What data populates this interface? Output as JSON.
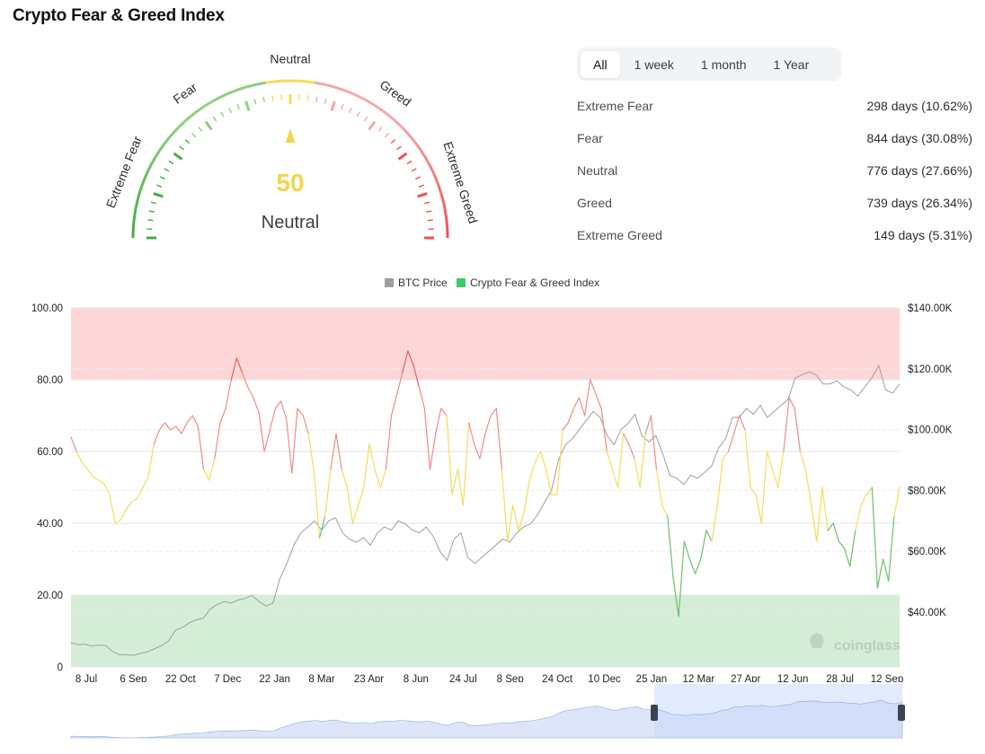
{
  "title": "Crypto Fear & Greed Index",
  "gauge": {
    "value": 50,
    "value_text": "50",
    "classification": "Neutral",
    "zone_labels": [
      "Extreme Fear",
      "Fear",
      "Neutral",
      "Greed",
      "Extreme Greed"
    ],
    "colors": {
      "extreme_fear": "#3fae3f",
      "fear": "#8fd07e",
      "neutral": "#f5dc5a",
      "greed": "#f5a8a8",
      "extreme_greed": "#ee4f55",
      "value": "#f3d54e"
    }
  },
  "tabs": [
    {
      "label": "All",
      "active": true
    },
    {
      "label": "1 week",
      "active": false
    },
    {
      "label": "1 month",
      "active": false
    },
    {
      "label": "1 Year",
      "active": false
    }
  ],
  "stats": [
    {
      "label": "Extreme Fear",
      "value": "298 days (10.62%)"
    },
    {
      "label": "Fear",
      "value": "844 days (30.08%)"
    },
    {
      "label": "Neutral",
      "value": "776 days (27.66%)"
    },
    {
      "label": "Greed",
      "value": "739 days (26.34%)"
    },
    {
      "label": "Extreme Greed",
      "value": "149 days (5.31%)"
    }
  ],
  "watermark": "coinglass",
  "chart_data": {
    "type": "line",
    "legend": [
      "BTC Price",
      "Crypto Fear & Greed Index"
    ],
    "legend_placement": "top-center",
    "legend_colors": [
      "#9e9e9e",
      "#3ec96b"
    ],
    "x_tick_labels": [
      "8 Jul",
      "6 Sep",
      "22 Oct",
      "7 Dec",
      "22 Jan",
      "8 Mar",
      "23 Apr",
      "8 Jun",
      "24 Jul",
      "8 Sep",
      "24 Oct",
      "10 Dec",
      "25 Jan",
      "12 Mar",
      "27 Apr",
      "12 Jun",
      "28 Jul",
      "12 Sep"
    ],
    "y_left_ticks": [
      "100.00",
      "80.00",
      "60.00",
      "40.00",
      "20.00",
      "0"
    ],
    "y_right_ticks": [
      "$140.00K",
      "$120.00K",
      "$100.00K",
      "$80.00K",
      "$60.00K",
      "$40.00K"
    ],
    "y_left_range": [
      0,
      100
    ],
    "y_right_range": [
      22000,
      140000
    ],
    "bands": [
      {
        "from": 80,
        "to": 100,
        "color": "#fdd7d7"
      },
      {
        "from": 0,
        "to": 20,
        "color": "#d5eed7"
      }
    ],
    "index_colors": {
      "above_60": "#f08b8b",
      "neutral_40_60": "#f5dc5a",
      "below_40": "#6fbf6f",
      "extreme_greed_above_80": "#ee5b63"
    },
    "series": [
      {
        "name": "Crypto Fear & Greed Index",
        "values": [
          64,
          60,
          57,
          55,
          53,
          52,
          51,
          48,
          40,
          41,
          44,
          46,
          47,
          50,
          53,
          62,
          66,
          68,
          66,
          67,
          65,
          68,
          70,
          67,
          55,
          52,
          58,
          68,
          72,
          80,
          86,
          82,
          78,
          75,
          71,
          60,
          66,
          72,
          74,
          69,
          54,
          72,
          70,
          65,
          54,
          36,
          42,
          55,
          65,
          55,
          50,
          40,
          45,
          50,
          62,
          55,
          50,
          55,
          70,
          76,
          82,
          88,
          84,
          78,
          72,
          55,
          65,
          72,
          70,
          48,
          55,
          45,
          68,
          62,
          58,
          65,
          70,
          72,
          55,
          35,
          45,
          38,
          43,
          52,
          57,
          60,
          55,
          48,
          48,
          66,
          68,
          72,
          75,
          70,
          80,
          76,
          72,
          60,
          55,
          50,
          65,
          62,
          58,
          50,
          65,
          70,
          55,
          45,
          42,
          25,
          14,
          35,
          30,
          26,
          30,
          38,
          35,
          45,
          58,
          60,
          65,
          70,
          66,
          50,
          48,
          40,
          60,
          55,
          50,
          60,
          75,
          72,
          60,
          55,
          45,
          35,
          50,
          38,
          40,
          35,
          33,
          28,
          38,
          45,
          48,
          50,
          22,
          30,
          24,
          42,
          50
        ]
      },
      {
        "name": "BTC Price",
        "values": [
          30000,
          29300,
          29500,
          28800,
          29200,
          29000,
          27000,
          26000,
          26000,
          25800,
          26500,
          27000,
          28000,
          29000,
          30500,
          34000,
          35000,
          36500,
          37500,
          38000,
          41000,
          42500,
          43500,
          43000,
          44000,
          44500,
          45500,
          43500,
          42000,
          43000,
          51000,
          56000,
          62000,
          66000,
          68000,
          70000,
          67000,
          70000,
          71000,
          66000,
          64000,
          63000,
          64500,
          62000,
          66000,
          68000,
          67000,
          70000,
          69000,
          67000,
          66000,
          68000,
          65000,
          60000,
          57000,
          64000,
          66000,
          58000,
          56000,
          58000,
          60000,
          62000,
          64000,
          63000,
          66000,
          68000,
          69000,
          72000,
          76000,
          80000,
          90000,
          95000,
          97000,
          100000,
          103000,
          106000,
          104000,
          98000,
          95000,
          100000,
          102000,
          105000,
          98000,
          96000,
          98000,
          92000,
          85000,
          84000,
          82000,
          85000,
          84000,
          86000,
          88000,
          94000,
          97000,
          104000,
          104000,
          107000,
          105000,
          108000,
          104000,
          106000,
          108000,
          110000,
          117000,
          118000,
          119000,
          118000,
          115000,
          115000,
          116000,
          114000,
          113000,
          111000,
          114000,
          117000,
          121000,
          113000,
          112000,
          115000
        ],
        "color": "#9e9e9e"
      }
    ]
  }
}
